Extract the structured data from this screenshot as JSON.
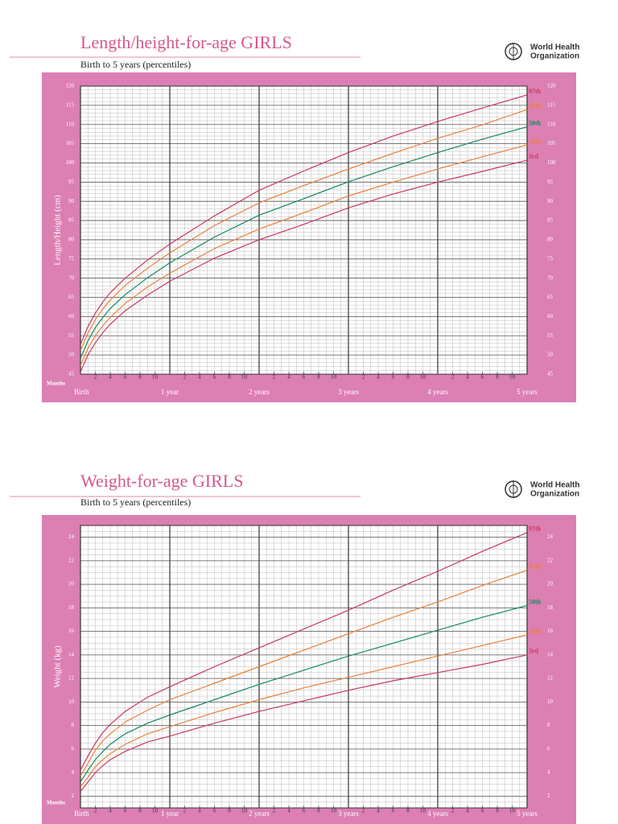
{
  "chart_data": [
    {
      "type": "line",
      "title": "Length/height-for-age GIRLS",
      "subtitle": "Birth to 5 years (percentiles)",
      "org": [
        "World Health",
        "Organization"
      ],
      "x_label": "Months",
      "y_label": "Length/Height (cm)",
      "x": [
        0,
        1,
        2,
        3,
        4,
        6,
        9,
        12,
        18,
        24,
        30,
        36,
        42,
        48,
        54,
        60
      ],
      "series": [
        {
          "name": "97th",
          "color": "#c8385e",
          "values": [
            52.7,
            57.4,
            60.9,
            63.8,
            66.2,
            70.0,
            74.7,
            78.9,
            86.2,
            92.9,
            97.9,
            102.7,
            107.0,
            110.8,
            114.3,
            117.7
          ]
        },
        {
          "name": "85th",
          "color": "#e9823a",
          "values": [
            51.1,
            55.7,
            59.2,
            62.0,
            64.3,
            68.1,
            72.6,
            76.6,
            83.7,
            89.6,
            94.1,
            98.4,
            102.5,
            106.4,
            109.9,
            113.9
          ]
        },
        {
          "name": "50th",
          "color": "#138a5c",
          "values": [
            49.1,
            53.7,
            57.1,
            59.8,
            62.1,
            65.7,
            70.1,
            74.0,
            80.7,
            86.4,
            90.7,
            95.1,
            99.0,
            102.7,
            106.2,
            109.4
          ]
        },
        {
          "name": "15th",
          "color": "#e9823a",
          "values": [
            47.2,
            51.7,
            55.0,
            57.6,
            59.8,
            63.4,
            67.7,
            71.3,
            77.7,
            82.8,
            87.0,
            91.4,
            95.0,
            98.4,
            101.6,
            104.7
          ]
        },
        {
          "name": "3rd",
          "color": "#c8385e",
          "values": [
            45.6,
            50.0,
            53.2,
            55.8,
            58.0,
            61.5,
            65.6,
            69.2,
            75.2,
            80.0,
            84.0,
            88.3,
            91.9,
            95.0,
            97.8,
            100.7
          ]
        }
      ],
      "xlim": [
        0,
        60
      ],
      "ylim": [
        45,
        120
      ],
      "yticks": [
        45,
        50,
        55,
        60,
        65,
        70,
        75,
        80,
        85,
        90,
        95,
        100,
        105,
        110,
        115,
        120
      ],
      "xticks": [
        2,
        4,
        6,
        8,
        10,
        {
          "value": 14,
          "label": "2"
        },
        {
          "value": 16,
          "label": "4"
        },
        {
          "value": 18,
          "label": "6"
        },
        {
          "value": 20,
          "label": "8"
        },
        {
          "value": 22,
          "label": "10"
        },
        {
          "value": 26,
          "label": "2"
        },
        {
          "value": 28,
          "label": "4"
        },
        {
          "value": 30,
          "label": "6"
        },
        {
          "value": 32,
          "label": "8"
        },
        {
          "value": 34,
          "label": "10"
        },
        {
          "value": 38,
          "label": "2"
        },
        {
          "value": 40,
          "label": "4"
        },
        {
          "value": 42,
          "label": "6"
        },
        {
          "value": 44,
          "label": "8"
        },
        {
          "value": 46,
          "label": "10"
        },
        {
          "value": 50,
          "label": "2"
        },
        {
          "value": 52,
          "label": "4"
        },
        {
          "value": 54,
          "label": "6"
        },
        {
          "value": 56,
          "label": "8"
        },
        {
          "value": 58,
          "label": "10"
        }
      ],
      "year_ticks": [
        {
          "value": 0,
          "label": "Birth"
        },
        {
          "value": 12,
          "label": "1 year"
        },
        {
          "value": 24,
          "label": "2 years"
        },
        {
          "value": 36,
          "label": "3 years"
        },
        {
          "value": 48,
          "label": "4 years"
        },
        {
          "value": 60,
          "label": "5 years"
        }
      ],
      "grid": true
    },
    {
      "type": "line",
      "title": "Weight-for-age GIRLS",
      "subtitle": "Birth to 5 years (percentiles)",
      "org": [
        "World Health",
        "Organization"
      ],
      "x_label": "Months",
      "y_label": "Weight (kg)",
      "x": [
        0,
        1,
        2,
        3,
        4,
        6,
        9,
        12,
        18,
        24,
        30,
        36,
        42,
        48,
        54,
        60
      ],
      "series": [
        {
          "name": "97th",
          "color": "#c8385e",
          "values": [
            4.2,
            5.4,
            6.5,
            7.4,
            8.1,
            9.2,
            10.4,
            11.3,
            13.0,
            14.6,
            16.2,
            17.8,
            19.5,
            21.1,
            22.8,
            24.4
          ]
        },
        {
          "name": "85th",
          "color": "#e9823a",
          "values": [
            3.7,
            4.8,
            5.9,
            6.7,
            7.3,
            8.3,
            9.3,
            10.2,
            11.6,
            13.0,
            14.4,
            15.8,
            17.2,
            18.5,
            19.9,
            21.2
          ]
        },
        {
          "name": "50th",
          "color": "#138a5c",
          "values": [
            3.2,
            4.2,
            5.1,
            5.8,
            6.4,
            7.3,
            8.2,
            8.9,
            10.2,
            11.5,
            12.7,
            13.9,
            15.0,
            16.1,
            17.2,
            18.2
          ]
        },
        {
          "name": "15th",
          "color": "#e9823a",
          "values": [
            2.8,
            3.6,
            4.5,
            5.1,
            5.6,
            6.4,
            7.3,
            7.9,
            9.1,
            10.2,
            11.2,
            12.1,
            13.0,
            13.9,
            14.8,
            15.7
          ]
        },
        {
          "name": "3rd",
          "color": "#c8385e",
          "values": [
            2.4,
            3.2,
            4.0,
            4.6,
            5.1,
            5.8,
            6.6,
            7.1,
            8.2,
            9.2,
            10.1,
            11.0,
            11.8,
            12.5,
            13.2,
            14.0
          ]
        }
      ],
      "xlim": [
        0,
        60
      ],
      "ylim": [
        1,
        25
      ],
      "yticks": [
        2,
        4,
        6,
        8,
        10,
        12,
        14,
        16,
        18,
        20,
        22,
        24
      ],
      "xticks": [
        2,
        4,
        6,
        8,
        10,
        {
          "value": 14,
          "label": "2"
        },
        {
          "value": 16,
          "label": "4"
        },
        {
          "value": 18,
          "label": "6"
        },
        {
          "value": 20,
          "label": "8"
        },
        {
          "value": 22,
          "label": "10"
        },
        {
          "value": 26,
          "label": "2"
        },
        {
          "value": 28,
          "label": "4"
        },
        {
          "value": 30,
          "label": "6"
        },
        {
          "value": 32,
          "label": "8"
        },
        {
          "value": 34,
          "label": "10"
        },
        {
          "value": 38,
          "label": "2"
        },
        {
          "value": 40,
          "label": "4"
        },
        {
          "value": 42,
          "label": "6"
        },
        {
          "value": 44,
          "label": "8"
        },
        {
          "value": 46,
          "label": "10"
        },
        {
          "value": 50,
          "label": "2"
        },
        {
          "value": 52,
          "label": "4"
        },
        {
          "value": 54,
          "label": "6"
        },
        {
          "value": 56,
          "label": "8"
        },
        {
          "value": 58,
          "label": "10"
        }
      ],
      "year_ticks": [
        {
          "value": 0,
          "label": "Birth"
        },
        {
          "value": 12,
          "label": "1 year"
        },
        {
          "value": 24,
          "label": "2 years"
        },
        {
          "value": 36,
          "label": "3 years"
        },
        {
          "value": 48,
          "label": "4 years"
        },
        {
          "value": 60,
          "label": "5 years"
        }
      ],
      "grid": true
    }
  ]
}
